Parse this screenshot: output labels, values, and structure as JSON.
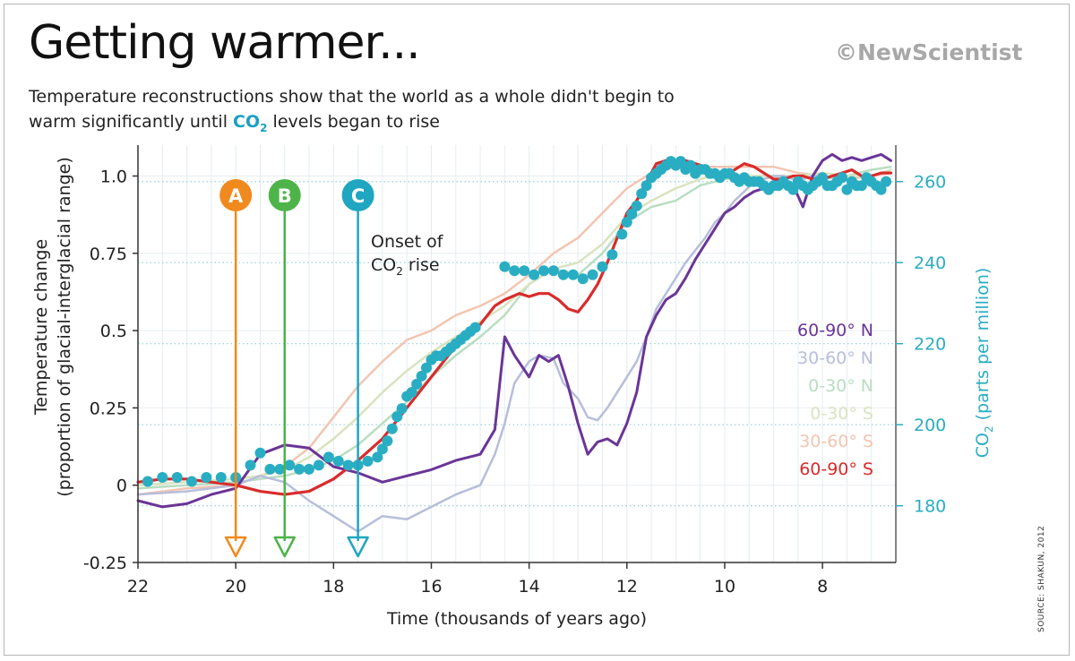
{
  "header": {
    "title": "Getting warmer...",
    "brand": "©NewScientist",
    "subtitle_a": "Temperature reconstructions show that the world as a whole didn't begin to warm significantly until",
    "subtitle_co2": "CO",
    "subtitle_co2_sub": "2",
    "subtitle_b": "levels began to rise"
  },
  "source": "SOURCE: SHAKUN, 2012",
  "colors": {
    "n60_90": "#6a3597",
    "n30_60": "#b7bedb",
    "n0_30": "#b9ddc2",
    "s0_30": "#d9e3bf",
    "s30_60": "#f2c5b2",
    "s60_90": "#d92b2b",
    "co2": "#29adc2",
    "A": "#f08a1e",
    "B": "#4db449",
    "C": "#1fa6c0"
  },
  "chart_data": {
    "type": "line",
    "xlabel": "Time (thousands of years ago)",
    "ylabel_left_1": "Temperature change",
    "ylabel_left_2": "(proportion of glacial-interglacial range)",
    "ylabel_right_main": "CO",
    "ylabel_right_sub": "2",
    "ylabel_right_rest": "(parts per million)",
    "xlim": [
      22,
      6.5
    ],
    "ylim": [
      -0.25,
      1.1
    ],
    "y2lim": [
      166,
      269
    ],
    "x_ticks": [
      "22",
      "20",
      "18",
      "16",
      "14",
      "12",
      "10",
      "8"
    ],
    "x_tick_values": [
      22,
      20,
      18,
      16,
      14,
      12,
      10,
      8
    ],
    "y_ticks": [
      "1.0",
      "0.75",
      "0.5",
      "0.25",
      "0",
      "-0.25"
    ],
    "y_tick_values": [
      1.0,
      0.75,
      0.5,
      0.25,
      0,
      -0.25
    ],
    "y2_ticks": [
      "260",
      "240",
      "220",
      "200",
      "180"
    ],
    "y2_tick_values": [
      260,
      240,
      220,
      200,
      180
    ],
    "grid": true,
    "legend_position": "right",
    "series": [
      {
        "name": "60-90° N",
        "key": "n60_90",
        "width": 3,
        "x": [
          22,
          21.5,
          21,
          20.5,
          20,
          19.5,
          19,
          18.5,
          18,
          17.5,
          17,
          16.5,
          16,
          15.5,
          15,
          14.7,
          14.5,
          14.3,
          14,
          13.8,
          13.6,
          13.4,
          13.2,
          13,
          12.8,
          12.6,
          12.4,
          12.2,
          12,
          11.8,
          11.6,
          11.4,
          11.2,
          11,
          10.8,
          10.6,
          10.4,
          10.2,
          10,
          9.8,
          9.6,
          9.4,
          9.2,
          9,
          8.8,
          8.6,
          8.4,
          8.2,
          8,
          7.8,
          7.6,
          7.4,
          7.2,
          7,
          6.8,
          6.6
        ],
        "y": [
          -0.05,
          -0.07,
          -0.06,
          -0.03,
          -0.01,
          0.1,
          0.13,
          0.12,
          0.06,
          0.04,
          0.01,
          0.03,
          0.05,
          0.08,
          0.1,
          0.18,
          0.48,
          0.42,
          0.35,
          0.42,
          0.4,
          0.42,
          0.32,
          0.2,
          0.1,
          0.14,
          0.15,
          0.13,
          0.2,
          0.3,
          0.48,
          0.55,
          0.6,
          0.62,
          0.67,
          0.73,
          0.78,
          0.83,
          0.88,
          0.9,
          0.93,
          0.95,
          0.96,
          0.98,
          0.99,
          0.97,
          0.9,
          1.0,
          1.05,
          1.07,
          1.05,
          1.06,
          1.05,
          1.06,
          1.07,
          1.05
        ]
      },
      {
        "name": "30-60° N",
        "key": "n30_60",
        "width": 2.5,
        "x": [
          22,
          21,
          20,
          19.5,
          19,
          18.5,
          18,
          17.5,
          17.3,
          17,
          16.5,
          16,
          15.5,
          15,
          14.7,
          14.5,
          14.3,
          14,
          13.8,
          13.5,
          13.3,
          13,
          12.8,
          12.6,
          12.4,
          12.2,
          12,
          11.8,
          11.6,
          11.4,
          11.2,
          11,
          10.8,
          10.6,
          10.4,
          10.2,
          10,
          9.8,
          9.6,
          9.4,
          9.2,
          9,
          8.8,
          8.6,
          8.4,
          8.2,
          8
        ],
        "y": [
          -0.03,
          -0.02,
          0,
          0.03,
          0.01,
          -0.05,
          -0.1,
          -0.15,
          -0.13,
          -0.1,
          -0.11,
          -0.07,
          -0.03,
          0,
          0.1,
          0.2,
          0.33,
          0.4,
          0.42,
          0.41,
          0.33,
          0.28,
          0.22,
          0.21,
          0.25,
          0.3,
          0.35,
          0.4,
          0.48,
          0.57,
          0.62,
          0.67,
          0.72,
          0.76,
          0.8,
          0.85,
          0.88,
          0.92,
          0.95,
          0.98,
          0.99,
          1.0,
          1.0,
          0.99,
          0.99,
          1.0,
          1.0
        ]
      },
      {
        "name": "0-30° N",
        "key": "n0_30",
        "width": 2.5,
        "x": [
          22,
          21,
          20,
          19.5,
          19,
          18.5,
          18,
          17.5,
          17,
          16.5,
          16,
          15.5,
          15,
          14.5,
          14,
          13.5,
          13,
          12.5,
          12,
          11.5,
          11,
          10.5,
          10,
          9.5,
          9,
          8.5,
          8,
          7.5,
          7,
          6.6
        ],
        "y": [
          -0.01,
          0,
          0.01,
          0.02,
          0.03,
          0.05,
          0.08,
          0.13,
          0.2,
          0.27,
          0.35,
          0.42,
          0.48,
          0.55,
          0.65,
          0.7,
          0.68,
          0.75,
          0.85,
          0.9,
          0.92,
          0.97,
          0.99,
          1.0,
          1.0,
          1.0,
          0.99,
          1.0,
          1.02,
          1.03
        ]
      },
      {
        "name": "0-30° S",
        "key": "s0_30",
        "width": 2.5,
        "x": [
          22,
          21,
          20,
          19.5,
          19,
          18.5,
          18,
          17.5,
          17,
          16.5,
          16,
          15.5,
          15,
          14.5,
          14,
          13.5,
          13,
          12.5,
          12,
          11.5,
          11,
          10.5,
          10,
          9.5,
          9,
          8.5,
          8,
          7.5,
          7,
          6.6
        ],
        "y": [
          0,
          0.01,
          0.02,
          0.03,
          0.05,
          0.09,
          0.15,
          0.22,
          0.3,
          0.37,
          0.43,
          0.48,
          0.53,
          0.58,
          0.65,
          0.7,
          0.72,
          0.78,
          0.87,
          0.92,
          0.96,
          0.99,
          1.01,
          1.0,
          1.0,
          1.0,
          1.01,
          1.0,
          1.0,
          1.02
        ]
      },
      {
        "name": "30-60° S",
        "key": "s30_60",
        "width": 2.5,
        "x": [
          22,
          21,
          20,
          19.5,
          19,
          18.5,
          18,
          17.5,
          17,
          16.5,
          16,
          15.5,
          15,
          14.5,
          14,
          13.5,
          13,
          12.5,
          12,
          11.5,
          11,
          10.5,
          10,
          9.5,
          9,
          8.5,
          8,
          7.5,
          7,
          6.6
        ],
        "y": [
          -0.03,
          -0.01,
          0,
          0.03,
          0.06,
          0.12,
          0.22,
          0.32,
          0.4,
          0.47,
          0.5,
          0.55,
          0.58,
          0.62,
          0.68,
          0.75,
          0.8,
          0.88,
          0.96,
          1.01,
          1.03,
          1.03,
          1.03,
          1.03,
          1.03,
          1.01,
          1.0,
          0.99,
          1.0,
          1.01
        ]
      },
      {
        "name": "60-90° S",
        "key": "s60_90",
        "width": 3.2,
        "x": [
          22,
          21.5,
          21,
          20.5,
          20,
          19.5,
          19,
          18.5,
          18,
          17.5,
          17,
          16.5,
          16,
          15.5,
          15,
          14.7,
          14.5,
          14.2,
          14,
          13.8,
          13.6,
          13.4,
          13.2,
          13,
          12.8,
          12.6,
          12.4,
          12.2,
          12,
          11.8,
          11.6,
          11.4,
          11.2,
          11,
          10.8,
          10.6,
          10.4,
          10.2,
          10,
          9.8,
          9.6,
          9.4,
          9.2,
          9,
          8.8,
          8.6,
          8.4,
          8.2,
          8,
          7.8,
          7.6,
          7.4,
          7.2,
          7,
          6.8,
          6.6
        ],
        "y": [
          0.01,
          0.02,
          0.02,
          0.01,
          0,
          -0.02,
          -0.03,
          -0.02,
          0.02,
          0.08,
          0.15,
          0.25,
          0.35,
          0.45,
          0.52,
          0.58,
          0.6,
          0.62,
          0.61,
          0.62,
          0.62,
          0.6,
          0.57,
          0.56,
          0.6,
          0.65,
          0.72,
          0.8,
          0.88,
          0.92,
          0.98,
          1.04,
          1.05,
          1.05,
          1.05,
          1.04,
          1.03,
          1.0,
          1.0,
          1.02,
          1.04,
          1.03,
          1.01,
          0.99,
          0.99,
          1.0,
          1.0,
          0.99,
          0.99,
          1.0,
          1.01,
          1.02,
          1.0,
          1.0,
          1.01,
          1.01
        ]
      }
    ],
    "co2_series": {
      "name": "CO2",
      "x": [
        21.8,
        21.5,
        21.2,
        20.9,
        20.6,
        20.3,
        20,
        19.7,
        19.5,
        19.3,
        19.1,
        18.9,
        18.7,
        18.5,
        18.3,
        18.1,
        17.9,
        17.7,
        17.5,
        17.3,
        17.1,
        17,
        16.9,
        16.8,
        16.7,
        16.6,
        16.5,
        16.4,
        16.3,
        16.2,
        16.1,
        16,
        15.9,
        15.8,
        15.7,
        15.6,
        15.5,
        15.4,
        15.3,
        15.2,
        15.1,
        14.5,
        14.3,
        14.1,
        13.9,
        13.7,
        13.5,
        13.3,
        13.1,
        12.9,
        12.7,
        12.5,
        12.3,
        12.1,
        12,
        11.9,
        11.8,
        11.7,
        11.6,
        11.5,
        11.4,
        11.3,
        11.2,
        11.1,
        11,
        10.9,
        10.8,
        10.7,
        10.6,
        10.5,
        10.4,
        10.3,
        10.2,
        10.1,
        10,
        9.9,
        9.8,
        9.7,
        9.6,
        9.5,
        9.4,
        9.3,
        9.2,
        9.1,
        9,
        8.9,
        8.8,
        8.7,
        8.6,
        8.5,
        8.4,
        8.3,
        8.2,
        8.1,
        8,
        7.9,
        7.8,
        7.7,
        7.6,
        7.5,
        7.4,
        7.3,
        7.2,
        7.1,
        7,
        6.9,
        6.8,
        6.7
      ],
      "y": [
        186,
        187,
        187,
        186,
        187,
        187,
        187,
        190,
        193,
        189,
        189,
        190,
        189,
        189,
        190,
        192,
        191,
        190,
        190,
        191,
        192,
        194,
        196,
        199,
        202,
        204,
        207,
        208,
        210,
        212,
        214,
        216,
        217,
        217,
        218,
        219,
        220,
        221,
        222,
        223,
        224,
        239,
        238,
        238,
        237,
        238,
        238,
        237,
        237,
        236,
        237,
        239,
        242,
        247,
        250,
        252,
        254,
        257,
        259,
        261,
        262,
        263,
        264,
        265,
        264,
        265,
        263,
        264,
        262,
        263,
        263,
        262,
        262,
        261,
        262,
        262,
        261,
        260,
        261,
        260,
        260,
        260,
        259,
        258,
        259,
        259,
        260,
        259,
        258,
        260,
        259,
        258,
        259,
        260,
        261,
        259,
        259,
        260,
        261,
        258,
        260,
        259,
        259,
        261,
        260,
        259,
        258,
        260
      ]
    },
    "arrows": [
      {
        "label": "A",
        "key": "A",
        "x": 20
      },
      {
        "label": "B",
        "key": "B",
        "x": 19
      },
      {
        "label": "C",
        "key": "C",
        "x": 17.5
      }
    ],
    "annotation_line1": "Onset of",
    "annotation_co2": "CO",
    "annotation_co2_sub": "2",
    "annotation_rest": "rise"
  }
}
